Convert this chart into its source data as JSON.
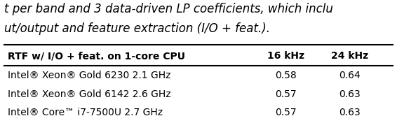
{
  "caption_lines": [
    "t per band and 3 data-driven LP coefficients, which inclu",
    "ut/output and feature extraction (I/O + feat.)."
  ],
  "header": [
    "RTF w/ I/O + feat. on 1-core CPU",
    "16 kHz",
    "24 kHz"
  ],
  "rows": [
    [
      "Intel® Xeon® Gold 6230 2.1 GHz",
      "0.58",
      "0.64"
    ],
    [
      "Intel® Xeon® Gold 6142 2.6 GHz",
      "0.57",
      "0.63"
    ],
    [
      "Intel® Core™ i7-7500U 2.7 GHz",
      "0.57",
      "0.63"
    ]
  ],
  "background_color": "#ffffff",
  "text_color": "#000000",
  "header_fontsize": 10,
  "body_fontsize": 10,
  "caption_fontsize": 12
}
